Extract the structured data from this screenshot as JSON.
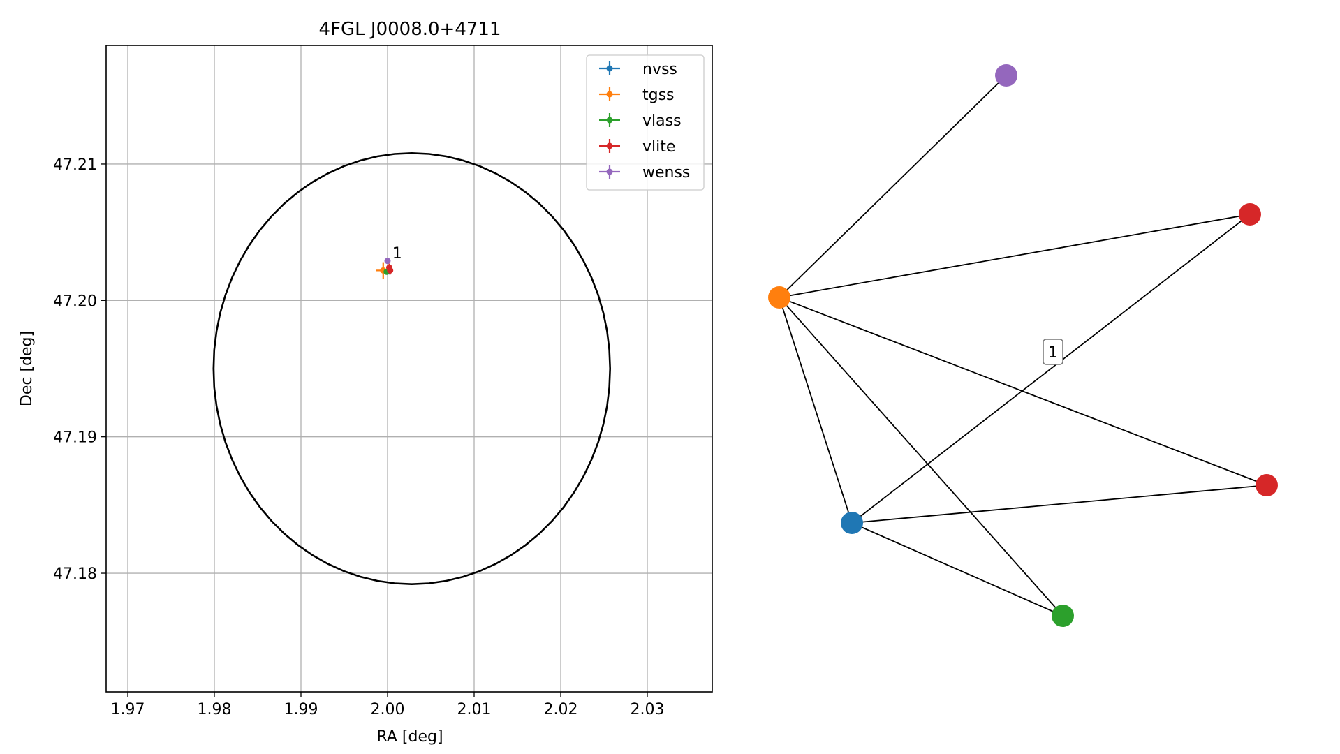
{
  "chart_data": [
    {
      "type": "scatter",
      "title": "4FGL J0008.0+4711",
      "xlabel": "RA [deg]",
      "ylabel": "Dec [deg]",
      "xlim": [
        1.9675,
        2.0375
      ],
      "ylim": [
        47.1713,
        47.2187
      ],
      "xticks": [
        1.97,
        1.98,
        1.99,
        2.0,
        2.01,
        2.02,
        2.03
      ],
      "xtick_labels": [
        "1.97",
        "1.98",
        "1.99",
        "2.00",
        "2.01",
        "2.02",
        "2.03"
      ],
      "yticks": [
        47.18,
        47.19,
        47.2,
        47.21
      ],
      "ytick_labels": [
        "47.18",
        "47.19",
        "47.20",
        "47.21"
      ],
      "grid": true,
      "legend_position": "top-right",
      "ellipse": {
        "center": [
          2.0028,
          47.195
        ],
        "semi_axis_ra": 0.0229,
        "semi_axis_dec": 0.0158,
        "color": "#000000"
      },
      "series": [
        {
          "name": "nvss",
          "color": "#1f77b4",
          "points": [
            {
              "x": 2.0002,
              "y": 47.2022,
              "xerr": 0.0003,
              "yerr": 0.0003
            }
          ]
        },
        {
          "name": "tgss",
          "color": "#ff7f0e",
          "points": [
            {
              "x": 1.9995,
              "y": 47.2022,
              "xerr": 0.0008,
              "yerr": 0.0006
            }
          ]
        },
        {
          "name": "vlass",
          "color": "#2ca02c",
          "points": [
            {
              "x": 1.9999,
              "y": 47.2021,
              "xerr": 0.0002,
              "yerr": 0.0001
            }
          ]
        },
        {
          "name": "vlite",
          "color": "#d62728",
          "points": [
            {
              "x": 2.0003,
              "y": 47.2022,
              "xerr": 0.0003,
              "yerr": 0.0003
            },
            {
              "x": 2.0002,
              "y": 47.2024,
              "xerr": 0.0003,
              "yerr": 0.0003
            }
          ]
        },
        {
          "name": "wenss",
          "color": "#9467bd",
          "points": [
            {
              "x": 2.0,
              "y": 47.2029,
              "xerr": 0.0001,
              "yerr": 0.0002
            }
          ]
        }
      ],
      "annotations": [
        {
          "text": "1",
          "x": 2.0003,
          "y": 47.2033
        }
      ]
    },
    {
      "type": "network",
      "nodes": [
        {
          "id": "wenss",
          "color": "#9467bd"
        },
        {
          "id": "vlite_a",
          "color": "#d62728"
        },
        {
          "id": "tgss",
          "color": "#ff7f0e"
        },
        {
          "id": "vlite_b",
          "color": "#d62728"
        },
        {
          "id": "nvss",
          "color": "#1f77b4"
        },
        {
          "id": "vlass",
          "color": "#2ca02c"
        }
      ],
      "edges": [
        [
          "tgss",
          "wenss"
        ],
        [
          "tgss",
          "vlite_a"
        ],
        [
          "tgss",
          "vlite_b"
        ],
        [
          "tgss",
          "nvss"
        ],
        [
          "tgss",
          "vlass"
        ],
        [
          "nvss",
          "vlite_a"
        ],
        [
          "nvss",
          "vlite_b"
        ],
        [
          "nvss",
          "vlass"
        ]
      ],
      "label_box": {
        "text": "1"
      }
    }
  ]
}
